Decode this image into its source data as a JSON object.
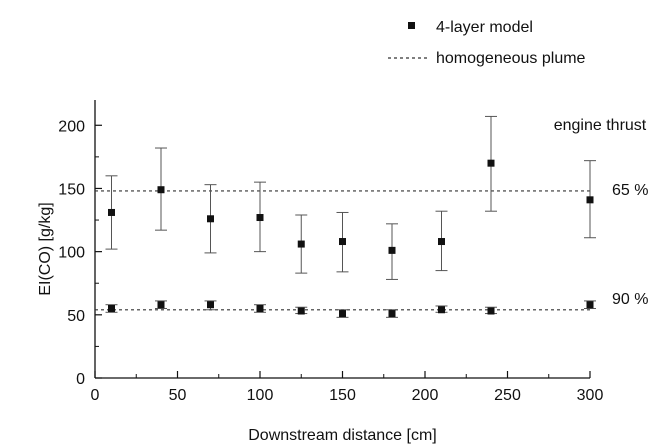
{
  "chart_data": {
    "type": "scatter",
    "xlabel": "Downstream distance [cm]",
    "ylabel": "EI(CO) [g/kg]",
    "xlim": [
      0,
      300
    ],
    "ylim": [
      0,
      220
    ],
    "x_ticks": [
      0,
      50,
      100,
      150,
      200,
      250,
      300
    ],
    "y_ticks": [
      0,
      50,
      100,
      150,
      200
    ],
    "grid": false,
    "legend_position": "top-right",
    "legend": [
      {
        "label": "4-layer model",
        "marker": "square"
      },
      {
        "label": "homogeneous plume",
        "marker": "dashed-line"
      }
    ],
    "annotations": {
      "header": "engine thrust",
      "labels": [
        "65 %",
        "90 %"
      ]
    },
    "series": [
      {
        "name": "4-layer model",
        "thrust_label": "65 %",
        "x": [
          10,
          40,
          70,
          100,
          125,
          150,
          180,
          210,
          240,
          300
        ],
        "y": [
          131,
          149,
          126,
          127,
          106,
          108,
          101,
          108,
          170,
          141
        ],
        "y_err_low": [
          102,
          117,
          99,
          100,
          83,
          84,
          78,
          85,
          132,
          111
        ],
        "y_err_high": [
          160,
          182,
          153,
          155,
          129,
          131,
          122,
          132,
          207,
          172
        ],
        "homogeneous_plume": 148
      },
      {
        "name": "4-layer model",
        "thrust_label": "90 %",
        "x": [
          10,
          40,
          70,
          100,
          125,
          150,
          180,
          210,
          240,
          300
        ],
        "y": [
          55,
          58,
          58,
          55,
          53,
          51,
          51,
          54,
          53,
          58
        ],
        "y_err_low": [
          52,
          55,
          54,
          52,
          51,
          48,
          48,
          52,
          51,
          55
        ],
        "y_err_high": [
          58,
          61,
          61,
          58,
          56,
          54,
          54,
          57,
          56,
          61
        ],
        "homogeneous_plume": 54
      }
    ]
  }
}
